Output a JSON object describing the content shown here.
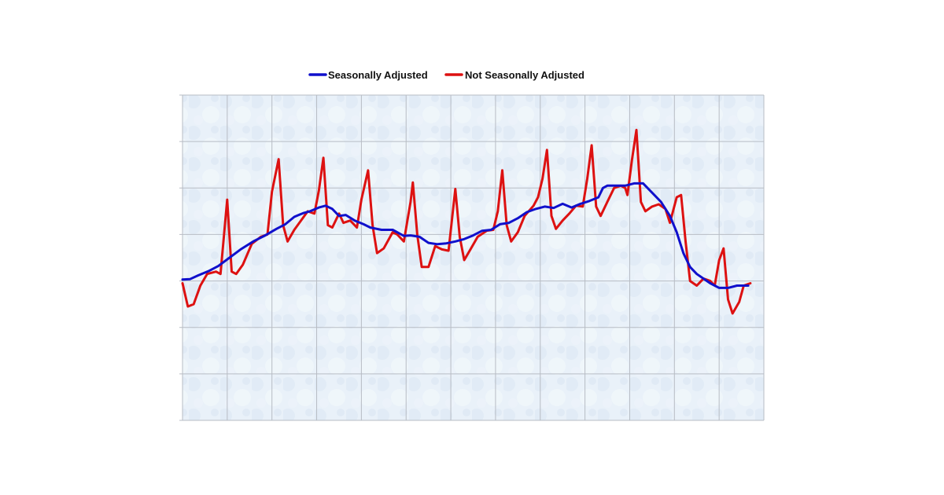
{
  "legend": {
    "items": [
      {
        "label": "Seasonally Adjusted",
        "color": "#1010cc"
      },
      {
        "label": "Not Seasonally Adjusted",
        "color": "#dd1111"
      }
    ]
  },
  "chart_data": {
    "type": "line",
    "title": "",
    "xlabel": "",
    "ylabel": "",
    "x_tick_labels": [],
    "y_tick_labels": [],
    "grid": true,
    "background": "#e9f1f9",
    "gridline_color": "#b7bcc4",
    "x_range": [
      0,
      13
    ],
    "y_range": [
      0,
      7
    ],
    "series": [
      {
        "name": "Seasonally Adjusted",
        "color": "#1010cc",
        "points": [
          [
            0.0,
            3.03
          ],
          [
            0.17,
            3.04
          ],
          [
            0.35,
            3.12
          ],
          [
            0.6,
            3.22
          ],
          [
            0.8,
            3.32
          ],
          [
            1.05,
            3.5
          ],
          [
            1.3,
            3.68
          ],
          [
            1.6,
            3.86
          ],
          [
            1.85,
            3.98
          ],
          [
            2.1,
            4.12
          ],
          [
            2.3,
            4.22
          ],
          [
            2.5,
            4.38
          ],
          [
            2.7,
            4.46
          ],
          [
            2.85,
            4.5
          ],
          [
            3.05,
            4.58
          ],
          [
            3.2,
            4.62
          ],
          [
            3.35,
            4.55
          ],
          [
            3.5,
            4.4
          ],
          [
            3.65,
            4.42
          ],
          [
            3.85,
            4.3
          ],
          [
            4.05,
            4.22
          ],
          [
            4.2,
            4.15
          ],
          [
            4.45,
            4.1
          ],
          [
            4.7,
            4.1
          ],
          [
            4.95,
            3.97
          ],
          [
            5.1,
            3.98
          ],
          [
            5.3,
            3.95
          ],
          [
            5.5,
            3.82
          ],
          [
            5.7,
            3.79
          ],
          [
            5.9,
            3.81
          ],
          [
            6.1,
            3.85
          ],
          [
            6.3,
            3.9
          ],
          [
            6.5,
            3.98
          ],
          [
            6.7,
            4.08
          ],
          [
            6.9,
            4.1
          ],
          [
            7.1,
            4.22
          ],
          [
            7.3,
            4.25
          ],
          [
            7.5,
            4.35
          ],
          [
            7.7,
            4.48
          ],
          [
            7.9,
            4.55
          ],
          [
            8.1,
            4.6
          ],
          [
            8.3,
            4.57
          ],
          [
            8.5,
            4.66
          ],
          [
            8.7,
            4.58
          ],
          [
            8.9,
            4.66
          ],
          [
            9.1,
            4.72
          ],
          [
            9.3,
            4.8
          ],
          [
            9.4,
            5.0
          ],
          [
            9.5,
            5.05
          ],
          [
            9.7,
            5.05
          ],
          [
            9.9,
            5.05
          ],
          [
            10.1,
            5.1
          ],
          [
            10.3,
            5.1
          ],
          [
            10.5,
            4.9
          ],
          [
            10.7,
            4.7
          ],
          [
            10.9,
            4.4
          ],
          [
            11.05,
            4.05
          ],
          [
            11.2,
            3.6
          ],
          [
            11.35,
            3.3
          ],
          [
            11.5,
            3.15
          ],
          [
            11.65,
            3.05
          ],
          [
            11.8,
            2.95
          ],
          [
            12.0,
            2.85
          ],
          [
            12.2,
            2.85
          ],
          [
            12.4,
            2.9
          ],
          [
            12.65,
            2.9
          ]
        ]
      },
      {
        "name": "Not Seasonally Adjusted",
        "color": "#dd1111",
        "points": [
          [
            0.0,
            2.95
          ],
          [
            0.12,
            2.45
          ],
          [
            0.25,
            2.5
          ],
          [
            0.4,
            2.9
          ],
          [
            0.55,
            3.15
          ],
          [
            0.75,
            3.2
          ],
          [
            0.85,
            3.15
          ],
          [
            1.0,
            4.75
          ],
          [
            1.1,
            3.2
          ],
          [
            1.2,
            3.15
          ],
          [
            1.35,
            3.35
          ],
          [
            1.55,
            3.8
          ],
          [
            1.75,
            3.95
          ],
          [
            1.9,
            4.0
          ],
          [
            2.0,
            4.92
          ],
          [
            2.15,
            5.62
          ],
          [
            2.25,
            4.2
          ],
          [
            2.35,
            3.85
          ],
          [
            2.5,
            4.1
          ],
          [
            2.65,
            4.3
          ],
          [
            2.8,
            4.5
          ],
          [
            2.95,
            4.45
          ],
          [
            3.05,
            4.95
          ],
          [
            3.15,
            5.65
          ],
          [
            3.25,
            4.2
          ],
          [
            3.35,
            4.15
          ],
          [
            3.5,
            4.45
          ],
          [
            3.6,
            4.25
          ],
          [
            3.75,
            4.3
          ],
          [
            3.9,
            4.15
          ],
          [
            4.0,
            4.75
          ],
          [
            4.15,
            5.38
          ],
          [
            4.25,
            4.2
          ],
          [
            4.35,
            3.6
          ],
          [
            4.5,
            3.7
          ],
          [
            4.7,
            4.05
          ],
          [
            4.8,
            4.0
          ],
          [
            4.95,
            3.85
          ],
          [
            5.1,
            4.7
          ],
          [
            5.15,
            5.12
          ],
          [
            5.25,
            4.0
          ],
          [
            5.35,
            3.3
          ],
          [
            5.5,
            3.3
          ],
          [
            5.65,
            3.75
          ],
          [
            5.8,
            3.68
          ],
          [
            5.95,
            3.65
          ],
          [
            6.0,
            4.1
          ],
          [
            6.1,
            4.98
          ],
          [
            6.2,
            3.95
          ],
          [
            6.3,
            3.45
          ],
          [
            6.45,
            3.7
          ],
          [
            6.6,
            3.95
          ],
          [
            6.8,
            4.08
          ],
          [
            6.95,
            4.1
          ],
          [
            7.05,
            4.5
          ],
          [
            7.15,
            5.38
          ],
          [
            7.25,
            4.2
          ],
          [
            7.35,
            3.85
          ],
          [
            7.5,
            4.05
          ],
          [
            7.65,
            4.4
          ],
          [
            7.85,
            4.62
          ],
          [
            7.95,
            4.8
          ],
          [
            8.05,
            5.2
          ],
          [
            8.15,
            5.82
          ],
          [
            8.25,
            4.4
          ],
          [
            8.35,
            4.12
          ],
          [
            8.5,
            4.3
          ],
          [
            8.65,
            4.45
          ],
          [
            8.8,
            4.62
          ],
          [
            8.95,
            4.6
          ],
          [
            9.05,
            5.2
          ],
          [
            9.15,
            5.92
          ],
          [
            9.25,
            4.6
          ],
          [
            9.35,
            4.4
          ],
          [
            9.5,
            4.7
          ],
          [
            9.65,
            5.0
          ],
          [
            9.8,
            5.05
          ],
          [
            9.9,
            5.0
          ],
          [
            9.95,
            4.85
          ],
          [
            10.05,
            5.6
          ],
          [
            10.15,
            6.25
          ],
          [
            10.25,
            4.7
          ],
          [
            10.35,
            4.5
          ],
          [
            10.5,
            4.6
          ],
          [
            10.65,
            4.65
          ],
          [
            10.8,
            4.55
          ],
          [
            10.9,
            4.25
          ],
          [
            11.05,
            4.8
          ],
          [
            11.15,
            4.85
          ],
          [
            11.25,
            3.85
          ],
          [
            11.35,
            3.0
          ],
          [
            11.5,
            2.9
          ],
          [
            11.65,
            3.05
          ],
          [
            11.8,
            3.0
          ],
          [
            11.9,
            2.9
          ],
          [
            12.0,
            3.45
          ],
          [
            12.1,
            3.7
          ],
          [
            12.2,
            2.6
          ],
          [
            12.3,
            2.3
          ],
          [
            12.45,
            2.55
          ],
          [
            12.55,
            2.9
          ],
          [
            12.7,
            2.95
          ]
        ]
      }
    ]
  }
}
